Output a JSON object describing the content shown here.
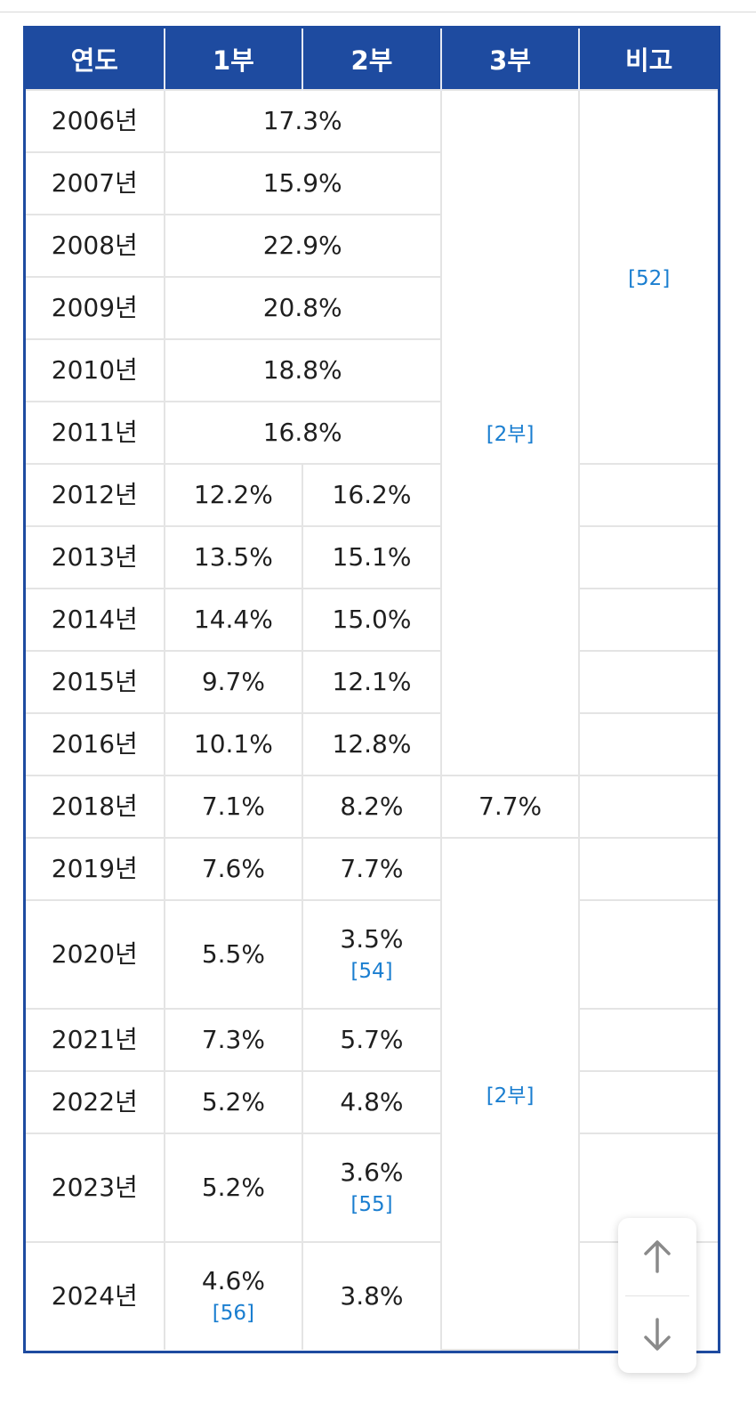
{
  "headers": [
    "연도",
    "1부",
    "2부",
    "3부",
    "비고"
  ],
  "rows": [
    {
      "year": "2006년",
      "merged": "17.3%"
    },
    {
      "year": "2007년",
      "merged": "15.9%"
    },
    {
      "year": "2008년",
      "merged": "22.9%"
    },
    {
      "year": "2009년",
      "merged": "20.8%"
    },
    {
      "year": "2010년",
      "merged": "18.8%"
    },
    {
      "year": "2011년",
      "merged": "16.8%"
    },
    {
      "year": "2012년",
      "div1": "12.2%",
      "div2": "16.2%"
    },
    {
      "year": "2013년",
      "div1": "13.5%",
      "div2": "15.1%"
    },
    {
      "year": "2014년",
      "div1": "14.4%",
      "div2": "15.0%"
    },
    {
      "year": "2015년",
      "div1": "9.7%",
      "div2": "12.1%"
    },
    {
      "year": "2016년",
      "div1": "10.1%",
      "div2": "12.8%"
    },
    {
      "year": "2018년",
      "div1": "7.1%",
      "div2": "8.2%",
      "div3": "7.7%"
    },
    {
      "year": "2019년",
      "div1": "7.6%",
      "div2": "7.7%"
    },
    {
      "year": "2020년",
      "div1": "5.5%",
      "div2": "3.5%",
      "div2_note": "[54]"
    },
    {
      "year": "2021년",
      "div1": "7.3%",
      "div2": "5.7%"
    },
    {
      "year": "2022년",
      "div1": "5.2%",
      "div2": "4.8%"
    },
    {
      "year": "2023년",
      "div1": "5.2%",
      "div2": "3.6%",
      "div2_note": "[55]"
    },
    {
      "year": "2024년",
      "div1": "4.6%",
      "div1_note": "[56]",
      "div2": "3.8%"
    }
  ],
  "div3_ref_upper": "[2부]",
  "div3_ref_lower": "[2부]",
  "remarks_ref": "[52]",
  "scroll": {
    "up_icon": "arrow-up-icon",
    "down_icon": "arrow-down-icon"
  },
  "colors": {
    "header_bg": "#1e4ba0",
    "link": "#1a7ed0",
    "border": "#e4e4e4"
  }
}
